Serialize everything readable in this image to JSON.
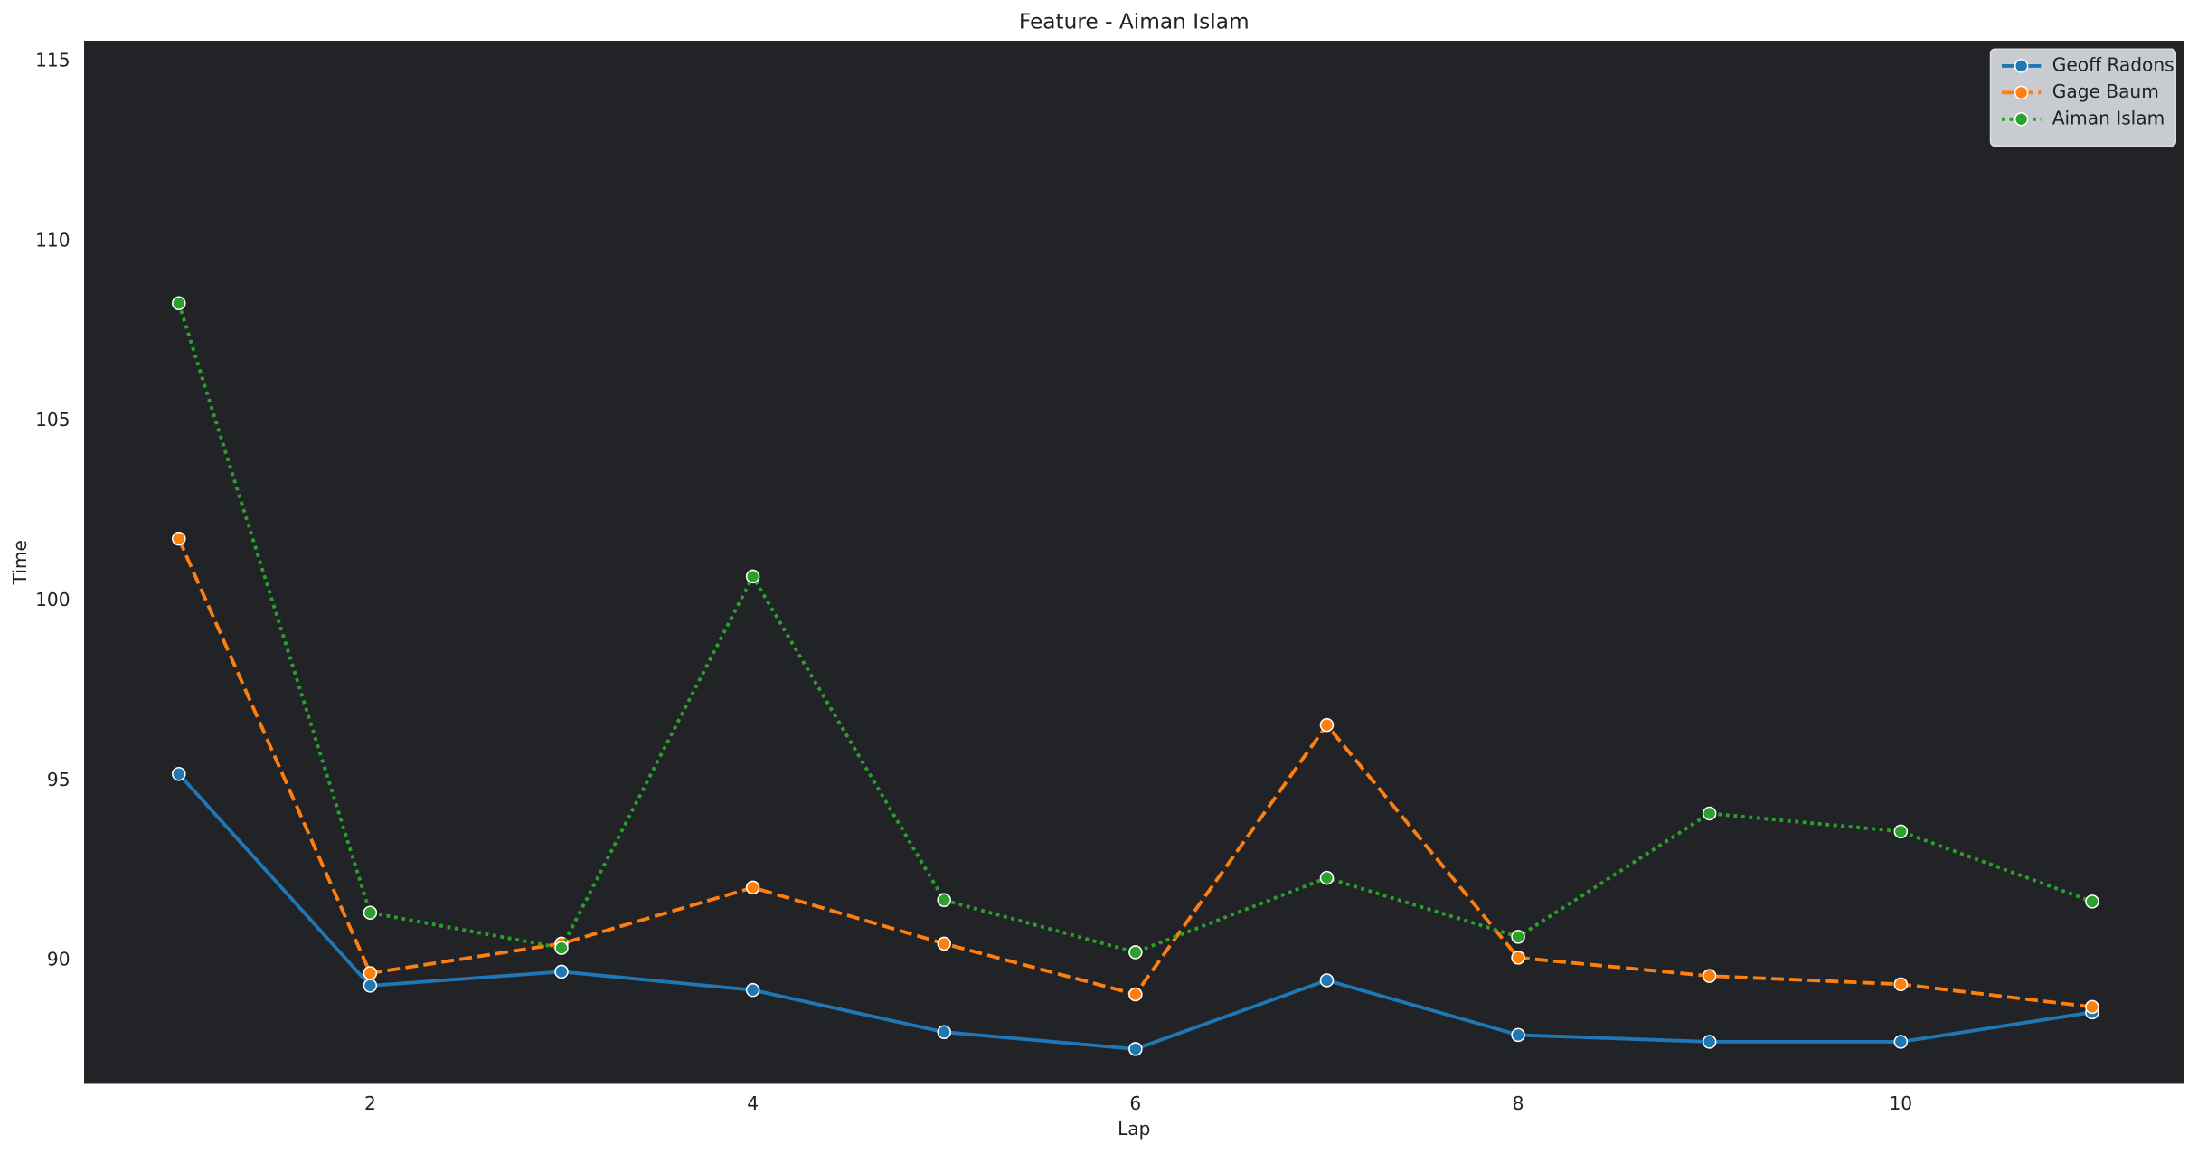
{
  "chart_data": {
    "type": "line",
    "title": "Feature - Aiman Islam",
    "x_label": "Lap",
    "y_label": "Time",
    "x": [
      1,
      2,
      3,
      4,
      5,
      6,
      7,
      8,
      9,
      10,
      11
    ],
    "series": [
      {
        "name": "Geoff Radons",
        "color": "#1f77b4",
        "linestyle": "solid",
        "values": [
          95.19,
          89.3,
          89.69,
          89.18,
          88.01,
          87.54,
          89.45,
          87.93,
          87.74,
          87.74,
          88.56
        ]
      },
      {
        "name": "Gage Baum",
        "color": "#ff7f0e",
        "linestyle": "dashed",
        "values": [
          101.73,
          89.65,
          90.47,
          92.03,
          90.47,
          89.06,
          96.55,
          90.08,
          89.57,
          89.34,
          88.71
        ]
      },
      {
        "name": "Aiman Islam",
        "color": "#2ca02c",
        "linestyle": "dotted",
        "values": [
          108.28,
          91.33,
          90.35,
          100.68,
          91.68,
          90.23,
          92.3,
          90.66,
          94.09,
          93.59,
          91.64
        ]
      }
    ],
    "xlim": [
      0.505,
      11.48
    ],
    "xticks": [
      2,
      4,
      6,
      8,
      10
    ],
    "ylim": [
      86.57,
      115.58
    ],
    "yticks": [
      90,
      95,
      100,
      105,
      110,
      115
    ],
    "grid": false,
    "legend": "upper right",
    "plot_background": "#212327"
  }
}
